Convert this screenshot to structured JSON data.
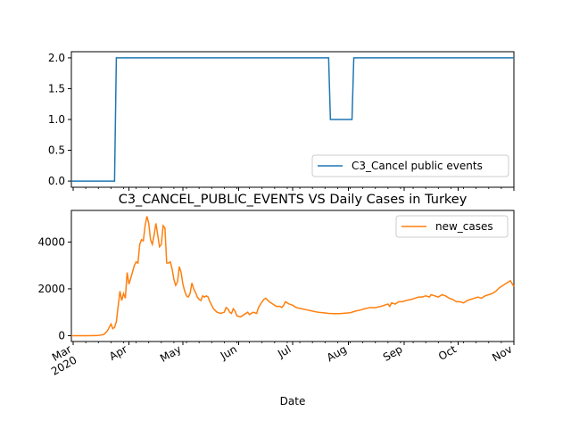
{
  "chart_data": [
    {
      "type": "line",
      "title": "",
      "xlabel": "",
      "ylabel": "",
      "x_range": [
        "2020-02-29",
        "2020-11-01"
      ],
      "ylim": [
        -0.1,
        2.1
      ],
      "yticks": [
        0.0,
        0.5,
        1.0,
        1.5,
        2.0
      ],
      "ytick_labels": [
        "0.0",
        "0.5",
        "1.0",
        "1.5",
        "2.0"
      ],
      "grid": false,
      "legend_position": "lower-right",
      "series": [
        {
          "name": "C3_Cancel public events",
          "color": "#1f77b4",
          "step_points": [
            [
              "2020-02-29",
              0
            ],
            [
              "2020-03-24",
              0
            ],
            [
              "2020-03-25",
              2
            ],
            [
              "2020-07-21",
              2
            ],
            [
              "2020-07-22",
              1
            ],
            [
              "2020-08-03",
              1
            ],
            [
              "2020-08-04",
              2
            ],
            [
              "2020-11-01",
              2
            ]
          ]
        }
      ]
    },
    {
      "type": "line",
      "title": "C3_CANCEL_PUBLIC_EVENTS VS Daily Cases in Turkey",
      "xlabel": "Date",
      "ylabel": "",
      "x_range": [
        "2020-02-29",
        "2020-11-01"
      ],
      "ylim": [
        -250,
        5350
      ],
      "yticks": [
        0,
        2000,
        4000
      ],
      "ytick_labels": [
        "0",
        "2000",
        "4000"
      ],
      "xticks": [
        {
          "date": "2020-03-01",
          "label": "Mar",
          "sub": "2020"
        },
        {
          "date": "2020-04-01",
          "label": "Apr",
          "sub": ""
        },
        {
          "date": "2020-05-01",
          "label": "May",
          "sub": ""
        },
        {
          "date": "2020-06-01",
          "label": "Jun",
          "sub": ""
        },
        {
          "date": "2020-07-01",
          "label": "Jul",
          "sub": ""
        },
        {
          "date": "2020-08-01",
          "label": "Aug",
          "sub": ""
        },
        {
          "date": "2020-09-01",
          "label": "Sep",
          "sub": ""
        },
        {
          "date": "2020-10-01",
          "label": "Oct",
          "sub": ""
        },
        {
          "date": "2020-11-01",
          "label": "Nov",
          "sub": ""
        }
      ],
      "grid": false,
      "legend_position": "upper-right",
      "series": [
        {
          "name": "new_cases",
          "color": "#ff7f0e",
          "points": [
            [
              "2020-02-29",
              0
            ],
            [
              "2020-03-10",
              0
            ],
            [
              "2020-03-15",
              5
            ],
            [
              "2020-03-18",
              50
            ],
            [
              "2020-03-20",
              200
            ],
            [
              "2020-03-22",
              500
            ],
            [
              "2020-03-23",
              300
            ],
            [
              "2020-03-24",
              350
            ],
            [
              "2020-03-25",
              600
            ],
            [
              "2020-03-27",
              1900
            ],
            [
              "2020-03-28",
              1500
            ],
            [
              "2020-03-29",
              1800
            ],
            [
              "2020-03-30",
              1600
            ],
            [
              "2020-03-31",
              2700
            ],
            [
              "2020-04-01",
              2200
            ],
            [
              "2020-04-02",
              2450
            ],
            [
              "2020-04-04",
              3000
            ],
            [
              "2020-04-05",
              3150
            ],
            [
              "2020-04-06",
              3100
            ],
            [
              "2020-04-07",
              3900
            ],
            [
              "2020-04-08",
              4100
            ],
            [
              "2020-04-09",
              4050
            ],
            [
              "2020-04-10",
              4700
            ],
            [
              "2020-04-11",
              5100
            ],
            [
              "2020-04-12",
              4800
            ],
            [
              "2020-04-13",
              4100
            ],
            [
              "2020-04-14",
              3900
            ],
            [
              "2020-04-15",
              4300
            ],
            [
              "2020-04-16",
              4800
            ],
            [
              "2020-04-17",
              4300
            ],
            [
              "2020-04-18",
              3800
            ],
            [
              "2020-04-19",
              3900
            ],
            [
              "2020-04-20",
              4700
            ],
            [
              "2020-04-21",
              4600
            ],
            [
              "2020-04-22",
              3100
            ],
            [
              "2020-04-23",
              3100
            ],
            [
              "2020-04-24",
              3150
            ],
            [
              "2020-04-25",
              2850
            ],
            [
              "2020-04-26",
              2400
            ],
            [
              "2020-04-27",
              2150
            ],
            [
              "2020-04-28",
              2300
            ],
            [
              "2020-04-29",
              2950
            ],
            [
              "2020-04-30",
              2700
            ],
            [
              "2020-05-01",
              2200
            ],
            [
              "2020-05-02",
              1900
            ],
            [
              "2020-05-03",
              1700
            ],
            [
              "2020-05-04",
              1650
            ],
            [
              "2020-05-05",
              1800
            ],
            [
              "2020-05-06",
              2250
            ],
            [
              "2020-05-07",
              2000
            ],
            [
              "2020-05-08",
              1850
            ],
            [
              "2020-05-09",
              1650
            ],
            [
              "2020-05-10",
              1550
            ],
            [
              "2020-05-11",
              1500
            ],
            [
              "2020-05-12",
              1700
            ],
            [
              "2020-05-13",
              1650
            ],
            [
              "2020-05-14",
              1700
            ],
            [
              "2020-05-15",
              1650
            ],
            [
              "2020-05-16",
              1450
            ],
            [
              "2020-05-17",
              1300
            ],
            [
              "2020-05-18",
              1150
            ],
            [
              "2020-05-20",
              1000
            ],
            [
              "2020-05-22",
              950
            ],
            [
              "2020-05-24",
              1000
            ],
            [
              "2020-05-25",
              1200
            ],
            [
              "2020-05-26",
              1150
            ],
            [
              "2020-05-27",
              1000
            ],
            [
              "2020-05-28",
              950
            ],
            [
              "2020-05-29",
              1150
            ],
            [
              "2020-05-30",
              1050
            ],
            [
              "2020-05-31",
              850
            ],
            [
              "2020-06-02",
              800
            ],
            [
              "2020-06-04",
              900
            ],
            [
              "2020-06-06",
              1000
            ],
            [
              "2020-06-07",
              900
            ],
            [
              "2020-06-09",
              1000
            ],
            [
              "2020-06-11",
              950
            ],
            [
              "2020-06-12",
              1200
            ],
            [
              "2020-06-14",
              1450
            ],
            [
              "2020-06-15",
              1550
            ],
            [
              "2020-06-16",
              1600
            ],
            [
              "2020-06-18",
              1450
            ],
            [
              "2020-06-20",
              1350
            ],
            [
              "2020-06-22",
              1250
            ],
            [
              "2020-06-24",
              1250
            ],
            [
              "2020-06-25",
              1200
            ],
            [
              "2020-06-26",
              1300
            ],
            [
              "2020-06-27",
              1450
            ],
            [
              "2020-06-28",
              1400
            ],
            [
              "2020-06-29",
              1350
            ],
            [
              "2020-07-01",
              1300
            ],
            [
              "2020-07-03",
              1200
            ],
            [
              "2020-07-06",
              1150
            ],
            [
              "2020-07-09",
              1100
            ],
            [
              "2020-07-12",
              1050
            ],
            [
              "2020-07-15",
              1000
            ],
            [
              "2020-07-18",
              980
            ],
            [
              "2020-07-21",
              950
            ],
            [
              "2020-07-24",
              940
            ],
            [
              "2020-07-27",
              940
            ],
            [
              "2020-07-30",
              960
            ],
            [
              "2020-08-02",
              980
            ],
            [
              "2020-08-05",
              1050
            ],
            [
              "2020-08-08",
              1100
            ],
            [
              "2020-08-10",
              1150
            ],
            [
              "2020-08-13",
              1200
            ],
            [
              "2020-08-16",
              1200
            ],
            [
              "2020-08-19",
              1250
            ],
            [
              "2020-08-21",
              1300
            ],
            [
              "2020-08-23",
              1350
            ],
            [
              "2020-08-24",
              1250
            ],
            [
              "2020-08-25",
              1400
            ],
            [
              "2020-08-27",
              1350
            ],
            [
              "2020-08-29",
              1450
            ],
            [
              "2020-08-31",
              1450
            ],
            [
              "2020-09-02",
              1500
            ],
            [
              "2020-09-05",
              1550
            ],
            [
              "2020-09-07",
              1600
            ],
            [
              "2020-09-09",
              1650
            ],
            [
              "2020-09-11",
              1650
            ],
            [
              "2020-09-13",
              1700
            ],
            [
              "2020-09-15",
              1650
            ],
            [
              "2020-09-16",
              1750
            ],
            [
              "2020-09-18",
              1700
            ],
            [
              "2020-09-20",
              1650
            ],
            [
              "2020-09-22",
              1750
            ],
            [
              "2020-09-24",
              1700
            ],
            [
              "2020-09-26",
              1600
            ],
            [
              "2020-09-28",
              1550
            ],
            [
              "2020-09-30",
              1450
            ],
            [
              "2020-10-02",
              1450
            ],
            [
              "2020-10-04",
              1400
            ],
            [
              "2020-10-06",
              1500
            ],
            [
              "2020-10-08",
              1550
            ],
            [
              "2020-10-10",
              1600
            ],
            [
              "2020-10-12",
              1650
            ],
            [
              "2020-10-14",
              1600
            ],
            [
              "2020-10-16",
              1700
            ],
            [
              "2020-10-18",
              1750
            ],
            [
              "2020-10-20",
              1800
            ],
            [
              "2020-10-22",
              1900
            ],
            [
              "2020-10-24",
              2050
            ],
            [
              "2020-10-26",
              2150
            ],
            [
              "2020-10-28",
              2250
            ],
            [
              "2020-10-30",
              2350
            ],
            [
              "2020-11-01",
              2100
            ]
          ]
        }
      ]
    }
  ]
}
